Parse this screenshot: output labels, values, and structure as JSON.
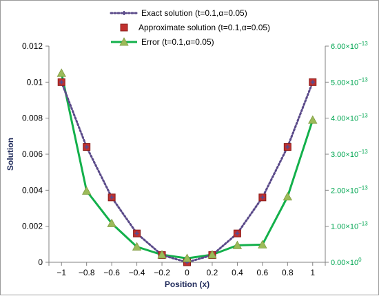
{
  "chart_data": {
    "type": "line",
    "xlabel": "Position (x)",
    "ylabel": "Solution",
    "x": [
      -1,
      -0.8,
      -0.6,
      -0.4,
      -0.2,
      0,
      0.2,
      0.4,
      0.6,
      0.8,
      1
    ],
    "x_ticks": [
      "−1",
      "−0.8",
      "−0.6",
      "−0.4",
      "−0.2",
      "0",
      "0.2",
      "0.4",
      "0.6",
      "0.8",
      "1"
    ],
    "y_ticks": [
      "0",
      "0.002",
      "0.004",
      "0.006",
      "0.008",
      "0.01",
      "0.012"
    ],
    "y_right_ticks": [
      {
        "m": "0.00",
        "e": "0"
      },
      {
        "m": "1.00",
        "e": "−13"
      },
      {
        "m": "2.00",
        "e": "−13"
      },
      {
        "m": "3.00",
        "e": "−13"
      },
      {
        "m": "4.00",
        "e": "−13"
      },
      {
        "m": "5.00",
        "e": "−13"
      },
      {
        "m": "6.00",
        "e": "−13"
      }
    ],
    "ylim": [
      0,
      0.012
    ],
    "y2lim": [
      0,
      6e-13
    ],
    "legend_position": "top",
    "series": [
      {
        "name": "Exact solution (t=0.1,α=0.05)",
        "axis": "left",
        "style": "dotted",
        "color": "#5b4b8a",
        "values": [
          0.01,
          0.0064,
          0.0036,
          0.0016,
          0.0004,
          0.0,
          0.0004,
          0.0016,
          0.0036,
          0.0064,
          0.01
        ]
      },
      {
        "name": "Approximate solution (t=0.1,α=0.05)",
        "axis": "left",
        "style": "markers",
        "color": "#c0302e",
        "values": [
          0.01,
          0.0064,
          0.0036,
          0.0016,
          0.0004,
          0.0,
          0.0004,
          0.0016,
          0.0036,
          0.0064,
          0.01
        ]
      },
      {
        "name": "Error (t=0.1,α=0.05)",
        "axis": "right",
        "style": "solid",
        "color": "#13b04b",
        "marker_color": "#9bbb59",
        "values": [
          5.25e-13,
          1.98e-13,
          1.08e-13,
          4.3e-14,
          2.1e-14,
          1.1e-14,
          2.1e-14,
          4.7e-14,
          4.9e-14,
          1.82e-13,
          3.95e-13
        ]
      }
    ]
  }
}
